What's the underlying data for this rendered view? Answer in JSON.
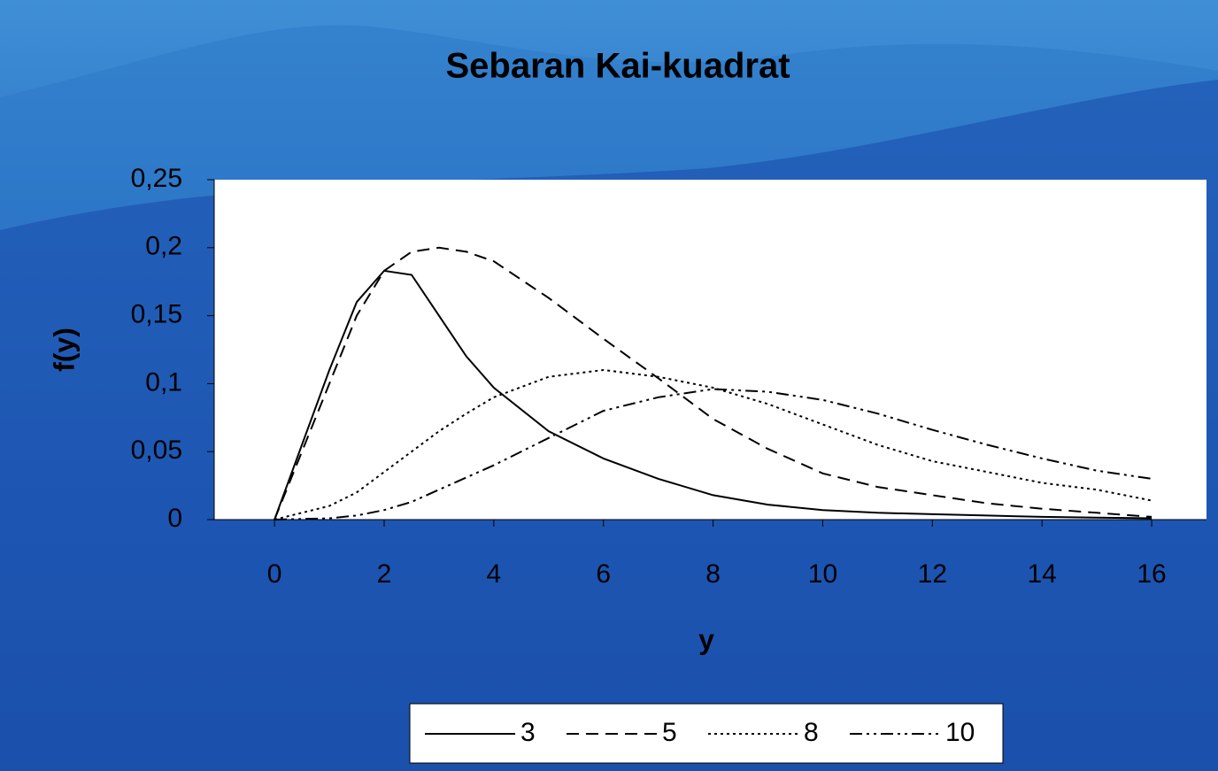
{
  "chart_data": {
    "type": "line",
    "title": "Sebaran Kai-kuadrat",
    "x_label": "y",
    "y_label": "f(y)",
    "x": [
      0,
      1,
      1.5,
      2,
      2.5,
      3,
      3.5,
      4,
      5,
      6,
      7,
      8,
      9,
      10,
      11,
      12,
      13,
      14,
      15,
      16
    ],
    "series": [
      {
        "name": "3",
        "color": "#000000",
        "dash": "none",
        "values": [
          0,
          0.11,
          0.16,
          0.183,
          0.18,
          0.15,
          0.12,
          0.097,
          0.065,
          0.045,
          0.03,
          0.018,
          0.011,
          0.007,
          0.005,
          0.004,
          0.003,
          0.002,
          0.0015,
          0.001
        ]
      },
      {
        "name": "5",
        "color": "#000000",
        "dash": "14,8",
        "values": [
          0,
          0.1,
          0.15,
          0.183,
          0.197,
          0.2,
          0.197,
          0.19,
          0.163,
          0.133,
          0.104,
          0.074,
          0.052,
          0.034,
          0.024,
          0.018,
          0.012,
          0.008,
          0.005,
          0.002
        ]
      },
      {
        "name": "8",
        "color": "#000000",
        "dash": "3,4",
        "values": [
          0,
          0.01,
          0.02,
          0.035,
          0.05,
          0.065,
          0.078,
          0.09,
          0.105,
          0.11,
          0.105,
          0.097,
          0.085,
          0.07,
          0.055,
          0.043,
          0.035,
          0.027,
          0.022,
          0.014
        ]
      },
      {
        "name": "10",
        "color": "#000000",
        "dash": "14,5,3,5,3,5",
        "values": [
          0,
          0.001,
          0.003,
          0.007,
          0.013,
          0.022,
          0.031,
          0.04,
          0.06,
          0.08,
          0.09,
          0.096,
          0.094,
          0.088,
          0.078,
          0.066,
          0.055,
          0.045,
          0.036,
          0.03
        ]
      }
    ],
    "xlim": [
      -1.1,
      17
    ],
    "xticks": [
      0,
      2,
      4,
      6,
      8,
      10,
      12,
      14,
      16
    ],
    "ylim": [
      0,
      0.25
    ],
    "yticks": [
      0,
      {
        "value": 0.05,
        "label": "0,05"
      },
      {
        "value": 0.1,
        "label": "0,1"
      },
      {
        "value": 0.15,
        "label": "0,15"
      },
      {
        "value": 0.2,
        "label": "0,2"
      },
      {
        "value": 0.25,
        "label": "0,25"
      }
    ],
    "legend": "bottom"
  }
}
